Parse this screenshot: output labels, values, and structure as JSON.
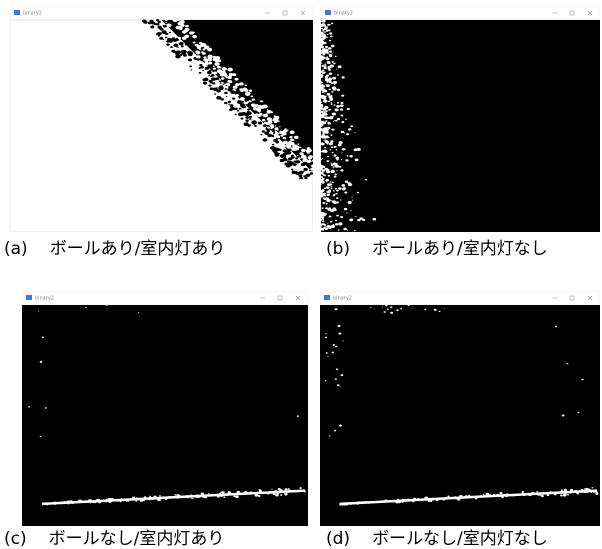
{
  "panels": [
    {
      "window_title": "binary2",
      "label": "(a)",
      "caption": "ボールあり/室内灯あり"
    },
    {
      "window_title": "binary2",
      "label": "(b)",
      "caption": "ボールあり/室内灯なし"
    },
    {
      "window_title": "binary2",
      "label": "(c)",
      "caption": "ボールなし/室内灯あり"
    },
    {
      "window_title": "binary2",
      "label": "(d)",
      "caption": "ボールなし/室内灯なし"
    }
  ]
}
